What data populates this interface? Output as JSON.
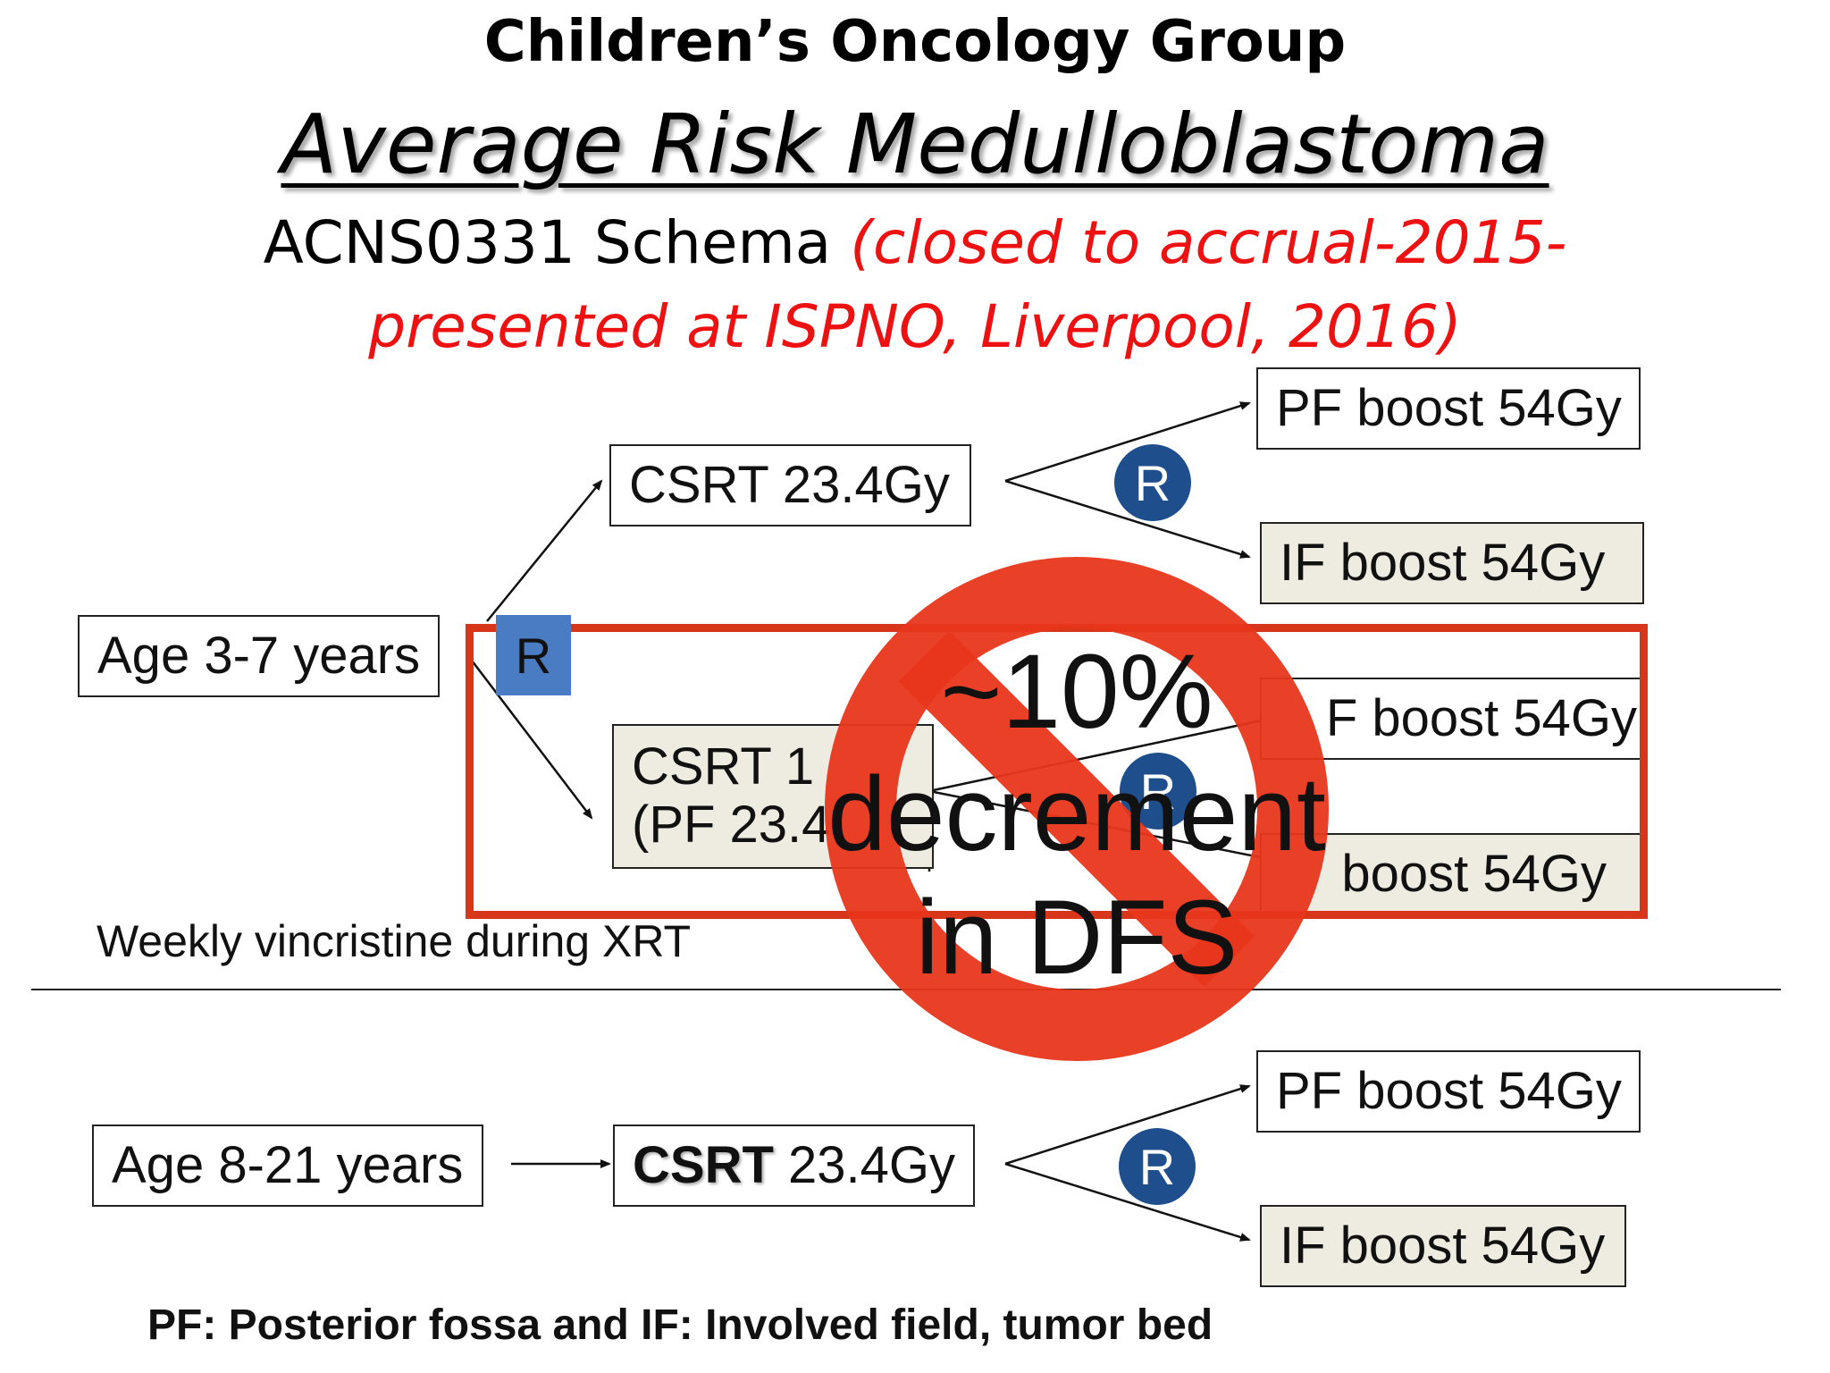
{
  "header": {
    "title": "Children’s Oncology Group",
    "subtitle": "Average Risk Medulloblastoma",
    "schema_label": "ACNS0331 Schema",
    "schema_note_1": "(closed to accrual-2015-",
    "schema_note_2": "presented at ISPNO, Liverpool, 2016)"
  },
  "upper_arm": {
    "age": "Age 3-7 years",
    "randomize": "R",
    "csrt_high": "CSRT 23.4Gy",
    "randomize_high": "R",
    "pf_boost_1": "PF boost 54Gy",
    "if_boost_1": "IF boost 54Gy",
    "csrt_low_line1": "CSRT 1",
    "csrt_low_line2": "(PF 23.4",
    "pf_boost_2": "F boost 54Gy",
    "randomize_low": "R",
    "if_boost_2": "boost 54Gy",
    "vincristine_note": "Weekly vincristine during XRT"
  },
  "prohibition_overlay": {
    "line1": "~10%",
    "line2": "decrement",
    "line3": "in DFS",
    "color": "#e8361c"
  },
  "lower_arm": {
    "age": "Age 8-21 years",
    "csrt_bold": "CSRT",
    "csrt_dose": " 23.4Gy",
    "randomize": "R",
    "pf_boost": "PF boost 54Gy",
    "if_boost": "IF boost 54Gy"
  },
  "footer": {
    "legend": "PF: Posterior fossa  and IF: Involved field, tumor bed"
  },
  "colors": {
    "title_red": "#ee1111",
    "randomize_circle": "#1f4e8c",
    "randomize_square": "#4a7cc4",
    "box_tan": "#eeebe1",
    "highlight_frame": "#d8361a"
  }
}
